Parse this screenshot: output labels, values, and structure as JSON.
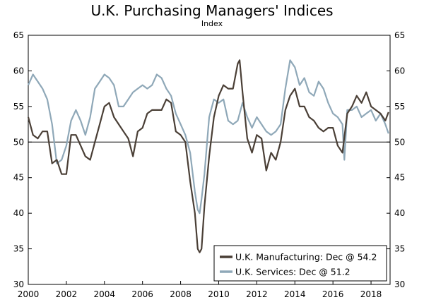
{
  "chart_data": {
    "type": "line",
    "title": "U.K. Purchasing Managers' Indices",
    "subtitle": "Index",
    "xlabel": "",
    "ylabel": "",
    "xlim": [
      2000,
      2019
    ],
    "ylim": [
      30,
      65
    ],
    "x_ticks": [
      "2000",
      "2002",
      "2004",
      "2006",
      "2008",
      "2010",
      "2012",
      "2014",
      "2016",
      "2018"
    ],
    "y_ticks_left": [
      "30",
      "35",
      "40",
      "45",
      "50",
      "55",
      "60",
      "65"
    ],
    "y_ticks_right": [
      "30",
      "35",
      "40",
      "45",
      "50",
      "55",
      "60",
      "65"
    ],
    "reference_line": 50,
    "legend_position": "bottom-right",
    "series": [
      {
        "name": "U.K. Manufacturing",
        "legend_label": "U.K. Manufacturing: Dec @ 54.2",
        "color": "#4a3f36",
        "x": [
          2000.0,
          2000.25,
          2000.5,
          2000.75,
          2001.0,
          2001.25,
          2001.5,
          2001.75,
          2002.0,
          2002.25,
          2002.5,
          2002.75,
          2003.0,
          2003.25,
          2003.5,
          2003.75,
          2004.0,
          2004.25,
          2004.5,
          2004.75,
          2005.0,
          2005.25,
          2005.5,
          2005.75,
          2006.0,
          2006.25,
          2006.5,
          2006.75,
          2007.0,
          2007.25,
          2007.5,
          2007.75,
          2008.0,
          2008.25,
          2008.5,
          2008.75,
          2008.9,
          2009.0,
          2009.1,
          2009.25,
          2009.5,
          2009.75,
          2010.0,
          2010.25,
          2010.5,
          2010.75,
          2011.0,
          2011.1,
          2011.25,
          2011.5,
          2011.75,
          2012.0,
          2012.25,
          2012.5,
          2012.75,
          2013.0,
          2013.25,
          2013.5,
          2013.75,
          2014.0,
          2014.25,
          2014.5,
          2014.75,
          2015.0,
          2015.25,
          2015.5,
          2015.75,
          2016.0,
          2016.25,
          2016.5,
          2016.75,
          2017.0,
          2017.25,
          2017.5,
          2017.75,
          2018.0,
          2018.25,
          2018.5,
          2018.75,
          2018.92
        ],
        "values": [
          53.5,
          51.0,
          50.5,
          51.5,
          51.5,
          47.0,
          47.5,
          45.5,
          45.5,
          51.0,
          51.0,
          49.5,
          48.0,
          47.5,
          50.0,
          52.5,
          55.0,
          55.5,
          53.5,
          52.5,
          51.5,
          50.5,
          48.0,
          51.5,
          52.0,
          54.0,
          54.5,
          54.5,
          54.5,
          56.0,
          55.5,
          51.5,
          51.0,
          50.0,
          44.5,
          40.0,
          35.0,
          34.5,
          35.0,
          41.0,
          48.0,
          53.5,
          56.5,
          58.0,
          57.5,
          57.5,
          61.0,
          61.5,
          57.0,
          50.5,
          48.5,
          51.0,
          50.5,
          46.0,
          48.5,
          47.5,
          50.0,
          54.5,
          56.5,
          57.5,
          55.0,
          55.0,
          53.5,
          53.0,
          52.0,
          51.5,
          52.0,
          52.0,
          49.5,
          48.5,
          54.0,
          55.0,
          56.5,
          55.5,
          57.0,
          55.0,
          54.5,
          54.0,
          53.0,
          54.2
        ]
      },
      {
        "name": "U.K. Services",
        "legend_label": "U.K. Services: Dec @ 51.2",
        "color": "#8fa8b8",
        "x": [
          2000.0,
          2000.25,
          2000.5,
          2000.75,
          2001.0,
          2001.25,
          2001.5,
          2001.75,
          2002.0,
          2002.25,
          2002.5,
          2002.75,
          2003.0,
          2003.25,
          2003.5,
          2003.75,
          2004.0,
          2004.25,
          2004.5,
          2004.75,
          2005.0,
          2005.25,
          2005.5,
          2005.75,
          2006.0,
          2006.25,
          2006.5,
          2006.75,
          2007.0,
          2007.25,
          2007.5,
          2007.75,
          2008.0,
          2008.25,
          2008.5,
          2008.75,
          2008.9,
          2009.0,
          2009.1,
          2009.25,
          2009.5,
          2009.75,
          2010.0,
          2010.25,
          2010.5,
          2010.75,
          2011.0,
          2011.25,
          2011.5,
          2011.75,
          2012.0,
          2012.25,
          2012.5,
          2012.75,
          2013.0,
          2013.25,
          2013.5,
          2013.75,
          2014.0,
          2014.25,
          2014.5,
          2014.75,
          2015.0,
          2015.25,
          2015.5,
          2015.75,
          2016.0,
          2016.25,
          2016.5,
          2016.6,
          2016.75,
          2017.0,
          2017.25,
          2017.5,
          2017.75,
          2018.0,
          2018.25,
          2018.5,
          2018.75,
          2018.92
        ],
        "values": [
          58.0,
          59.5,
          58.5,
          57.5,
          56.0,
          52.5,
          47.0,
          47.5,
          49.5,
          53.0,
          54.5,
          53.0,
          51.0,
          53.5,
          57.5,
          58.5,
          59.5,
          59.0,
          58.0,
          55.0,
          55.0,
          56.0,
          57.0,
          57.5,
          58.0,
          57.5,
          58.0,
          59.5,
          59.0,
          57.5,
          56.5,
          54.0,
          52.5,
          51.0,
          48.5,
          43.0,
          40.5,
          40.0,
          42.0,
          45.5,
          53.5,
          56.0,
          55.5,
          56.0,
          53.0,
          52.5,
          53.0,
          55.5,
          53.5,
          52.0,
          53.5,
          52.5,
          51.5,
          51.0,
          51.5,
          52.5,
          57.5,
          61.5,
          60.5,
          58.0,
          59.0,
          57.0,
          56.5,
          58.5,
          57.5,
          55.5,
          54.0,
          53.5,
          52.5,
          47.5,
          54.5,
          54.5,
          55.0,
          53.5,
          54.0,
          54.5,
          53.0,
          54.0,
          52.5,
          51.2
        ]
      }
    ]
  }
}
